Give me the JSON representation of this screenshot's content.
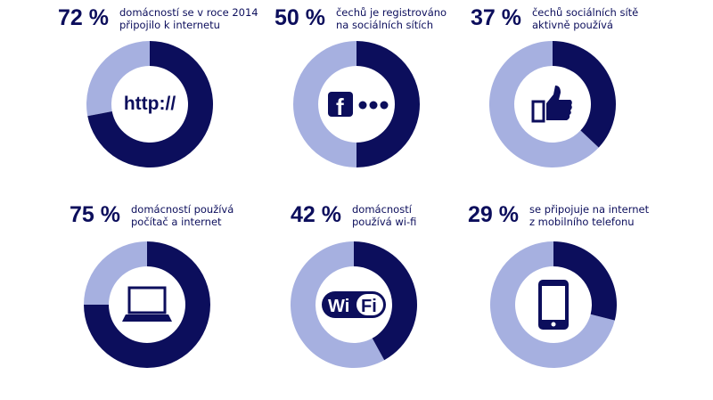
{
  "colors": {
    "filled": "#0c0e5c",
    "remainder": "#a6b0e0"
  },
  "chart_data": [
    {
      "type": "pie",
      "variant": "donut",
      "value": 72,
      "label": "72 %",
      "description": "domácností se v roce 2014\npřipojilo k internetu",
      "icon": "http-icon",
      "icon_text": "http://"
    },
    {
      "type": "pie",
      "variant": "donut",
      "value": 50,
      "label": "50 %",
      "description": "čechů je registrováno\nna sociálních sítích",
      "icon": "facebook-icon"
    },
    {
      "type": "pie",
      "variant": "donut",
      "value": 37,
      "label": "37 %",
      "description": "čechů sociálních sítě\naktivně používá",
      "icon": "thumbs-up-icon"
    },
    {
      "type": "pie",
      "variant": "donut",
      "value": 75,
      "label": "75 %",
      "description": "domácností používá\npočítač a internet",
      "icon": "laptop-icon"
    },
    {
      "type": "pie",
      "variant": "donut",
      "value": 42,
      "label": "42 %",
      "description": "domácností\npoužívá wi-fi",
      "icon": "wifi-icon",
      "icon_text": "Wi Fi"
    },
    {
      "type": "pie",
      "variant": "donut",
      "value": 29,
      "label": "29 %",
      "description": "se připojuje na internet\nz mobilního telefonu",
      "icon": "smartphone-icon"
    }
  ]
}
